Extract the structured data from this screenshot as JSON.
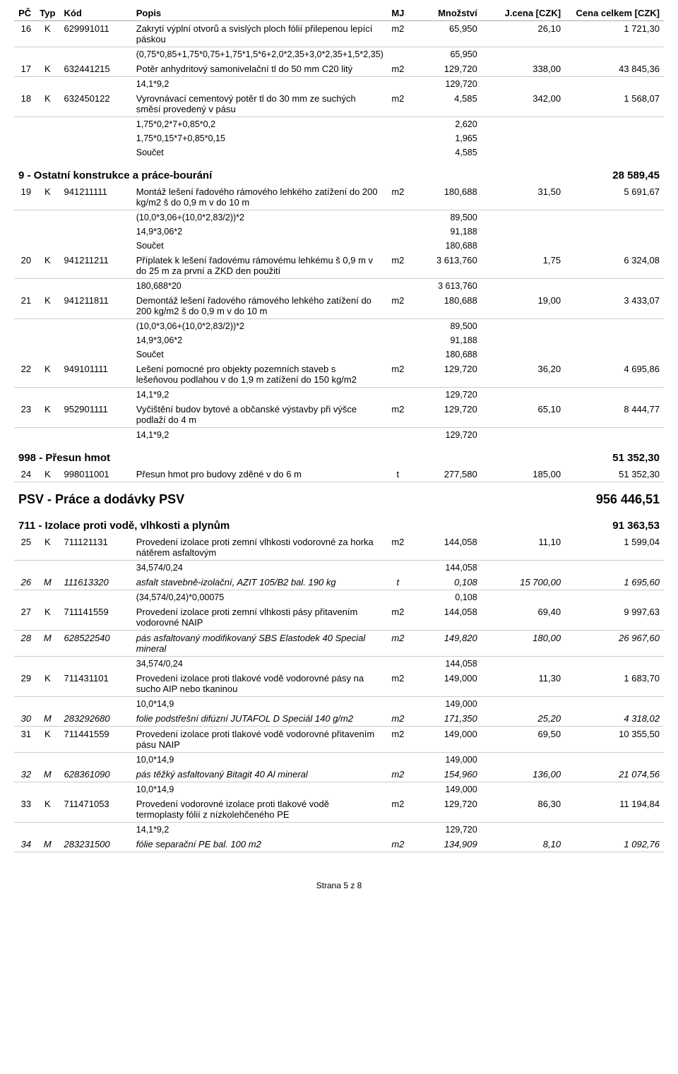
{
  "columns": {
    "pc": "PČ",
    "typ": "Typ",
    "kod": "Kód",
    "popis": "Popis",
    "mj": "MJ",
    "mnozstvi": "Množství",
    "jcena": "J.cena [CZK]",
    "cena": "Cena celkem [CZK]"
  },
  "rows": [
    {
      "t": "item",
      "pc": "16",
      "typ": "K",
      "kod": "629991011",
      "popis": "Zakrytí výplní otvorů a svislých ploch fólií přilepenou lepící páskou",
      "mj": "m2",
      "mnoz": "65,950",
      "jcena": "26,10",
      "cena": "1 721,30"
    },
    {
      "t": "calc",
      "popis": "(0,75*0,85+1,75*0,75+1,75*1,5*6+2,0*2,35+3,0*2,35+1,5*2,35)*2",
      "mnoz": "65,950"
    },
    {
      "t": "item",
      "pc": "17",
      "typ": "K",
      "kod": "632441215",
      "popis": "Potěr anhydritový samonivelační tl do 50 mm C20 litý",
      "mj": "m2",
      "mnoz": "129,720",
      "jcena": "338,00",
      "cena": "43 845,36"
    },
    {
      "t": "calc",
      "popis": "14,1*9,2",
      "mnoz": "129,720"
    },
    {
      "t": "item",
      "pc": "18",
      "typ": "K",
      "kod": "632450122",
      "popis": "Vyrovnávací cementový potěr tl do 30 mm ze suchých směsí provedený v pásu",
      "mj": "m2",
      "mnoz": "4,585",
      "jcena": "342,00",
      "cena": "1 568,07"
    },
    {
      "t": "calc",
      "popis": "1,75*0,2*7+0,85*0,2",
      "mnoz": "2,620"
    },
    {
      "t": "calc",
      "popis": "1,75*0,15*7+0,85*0,15",
      "mnoz": "1,965"
    },
    {
      "t": "calc",
      "popis": "Součet",
      "mnoz": "4,585"
    },
    {
      "t": "section",
      "title": "9 - Ostatní konstrukce a práce-bourání",
      "total": "28 589,45"
    },
    {
      "t": "item",
      "pc": "19",
      "typ": "K",
      "kod": "941211111",
      "popis": "Montáž lešení řadového rámového lehkého zatížení do 200 kg/m2 š do 0,9 m v do 10 m",
      "mj": "m2",
      "mnoz": "180,688",
      "jcena": "31,50",
      "cena": "5 691,67"
    },
    {
      "t": "calc",
      "popis": "(10,0*3,06+(10,0*2,83/2))*2",
      "mnoz": "89,500"
    },
    {
      "t": "calc",
      "popis": "14,9*3,06*2",
      "mnoz": "91,188"
    },
    {
      "t": "calc",
      "popis": "Součet",
      "mnoz": "180,688"
    },
    {
      "t": "item",
      "pc": "20",
      "typ": "K",
      "kod": "941211211",
      "popis": "Příplatek k lešení řadovému rámovému lehkému š 0,9 m v do 25 m za první a ZKD den použití",
      "mj": "m2",
      "mnoz": "3 613,760",
      "jcena": "1,75",
      "cena": "6 324,08"
    },
    {
      "t": "calc",
      "popis": "180,688*20",
      "mnoz": "3 613,760"
    },
    {
      "t": "item",
      "pc": "21",
      "typ": "K",
      "kod": "941211811",
      "popis": "Demontáž lešení řadového rámového lehkého zatížení do 200 kg/m2 š do 0,9 m v do 10 m",
      "mj": "m2",
      "mnoz": "180,688",
      "jcena": "19,00",
      "cena": "3 433,07"
    },
    {
      "t": "calc",
      "popis": "(10,0*3,06+(10,0*2,83/2))*2",
      "mnoz": "89,500"
    },
    {
      "t": "calc",
      "popis": "14,9*3,06*2",
      "mnoz": "91,188"
    },
    {
      "t": "calc",
      "popis": "Součet",
      "mnoz": "180,688"
    },
    {
      "t": "item",
      "pc": "22",
      "typ": "K",
      "kod": "949101111",
      "popis": "Lešení pomocné pro objekty pozemních staveb s lešeňovou podlahou v do 1,9 m zatížení do 150 kg/m2",
      "mj": "m2",
      "mnoz": "129,720",
      "jcena": "36,20",
      "cena": "4 695,86"
    },
    {
      "t": "calc",
      "popis": "14,1*9,2",
      "mnoz": "129,720"
    },
    {
      "t": "item",
      "pc": "23",
      "typ": "K",
      "kod": "952901111",
      "popis": "Vyčištění budov bytové a občanské výstavby při výšce podlaží do 4 m",
      "mj": "m2",
      "mnoz": "129,720",
      "jcena": "65,10",
      "cena": "8 444,77"
    },
    {
      "t": "calc",
      "popis": "14,1*9,2",
      "mnoz": "129,720"
    },
    {
      "t": "section",
      "title": "998 - Přesun hmot",
      "total": "51 352,30"
    },
    {
      "t": "item",
      "pc": "24",
      "typ": "K",
      "kod": "998011001",
      "popis": "Přesun hmot pro budovy zděné v do 6 m",
      "mj": "t",
      "mnoz": "277,580",
      "jcena": "185,00",
      "cena": "51 352,30"
    },
    {
      "t": "section-major",
      "title": "PSV - Práce a dodávky PSV",
      "total": "956 446,51"
    },
    {
      "t": "section",
      "title": "711 - Izolace proti vodě, vlhkosti a plynům",
      "total": "91 363,53"
    },
    {
      "t": "item",
      "pc": "25",
      "typ": "K",
      "kod": "711121131",
      "popis": "Provedení izolace proti zemní vlhkosti vodorovné za horka nátěrem asfaltovým",
      "mj": "m2",
      "mnoz": "144,058",
      "jcena": "11,10",
      "cena": "1 599,04"
    },
    {
      "t": "calc",
      "popis": "34,574/0,24",
      "mnoz": "144,058"
    },
    {
      "t": "item",
      "mat": true,
      "pc": "26",
      "typ": "M",
      "kod": "111613320",
      "popis": "asfalt stavebně-izolační, AZIT 105/B2  bal. 190 kg",
      "mj": "t",
      "mnoz": "0,108",
      "jcena": "15 700,00",
      "cena": "1 695,60"
    },
    {
      "t": "calc",
      "popis": "(34,574/0,24)*0,00075",
      "mnoz": "0,108"
    },
    {
      "t": "item",
      "pc": "27",
      "typ": "K",
      "kod": "711141559",
      "popis": "Provedení izolace proti zemní vlhkosti pásy přitavením vodorovné NAIP",
      "mj": "m2",
      "mnoz": "144,058",
      "jcena": "69,40",
      "cena": "9 997,63"
    },
    {
      "t": "item",
      "mat": true,
      "pc": "28",
      "typ": "M",
      "kod": "628522540",
      "popis": "pás asfaltovaný modifikovaný SBS Elastodek 40 Special mineral",
      "mj": "m2",
      "mnoz": "149,820",
      "jcena": "180,00",
      "cena": "26 967,60"
    },
    {
      "t": "calc",
      "popis": "34,574/0,24",
      "mnoz": "144,058"
    },
    {
      "t": "item",
      "pc": "29",
      "typ": "K",
      "kod": "711431101",
      "popis": "Provedení izolace proti tlakové vodě vodorovné pásy na sucho AIP nebo tkaninou",
      "mj": "m2",
      "mnoz": "149,000",
      "jcena": "11,30",
      "cena": "1 683,70"
    },
    {
      "t": "calc",
      "popis": "10,0*14,9",
      "mnoz": "149,000"
    },
    {
      "t": "item",
      "mat": true,
      "pc": "30",
      "typ": "M",
      "kod": "283292680",
      "popis": "folie podstřešní difúzní JUTAFOL D Speciál 140 g/m2",
      "mj": "m2",
      "mnoz": "171,350",
      "jcena": "25,20",
      "cena": "4 318,02"
    },
    {
      "t": "item",
      "pc": "31",
      "typ": "K",
      "kod": "711441559",
      "popis": "Provedení izolace proti tlakové vodě vodorovné přitavením pásu NAIP",
      "mj": "m2",
      "mnoz": "149,000",
      "jcena": "69,50",
      "cena": "10 355,50"
    },
    {
      "t": "calc",
      "popis": "10,0*14,9",
      "mnoz": "149,000"
    },
    {
      "t": "item",
      "mat": true,
      "pc": "32",
      "typ": "M",
      "kod": "628361090",
      "popis": "pás těžký asfaltovaný Bitagit 40 Al mineral",
      "mj": "m2",
      "mnoz": "154,960",
      "jcena": "136,00",
      "cena": "21 074,56"
    },
    {
      "t": "calc",
      "popis": "10,0*14,9",
      "mnoz": "149,000"
    },
    {
      "t": "item",
      "pc": "33",
      "typ": "K",
      "kod": "711471053",
      "popis": "Provedení vodorovné izolace proti tlakové vodě termoplasty fólií z nízkolehčeného PE",
      "mj": "m2",
      "mnoz": "129,720",
      "jcena": "86,30",
      "cena": "11 194,84"
    },
    {
      "t": "calc",
      "popis": "14,1*9,2",
      "mnoz": "129,720"
    },
    {
      "t": "item",
      "mat": true,
      "pc": "34",
      "typ": "M",
      "kod": "283231500",
      "popis": "fólie separační PE bal. 100 m2",
      "mj": "m2",
      "mnoz": "134,909",
      "jcena": "8,10",
      "cena": "1 092,76"
    }
  ],
  "footer": "Strana 5 z 8"
}
